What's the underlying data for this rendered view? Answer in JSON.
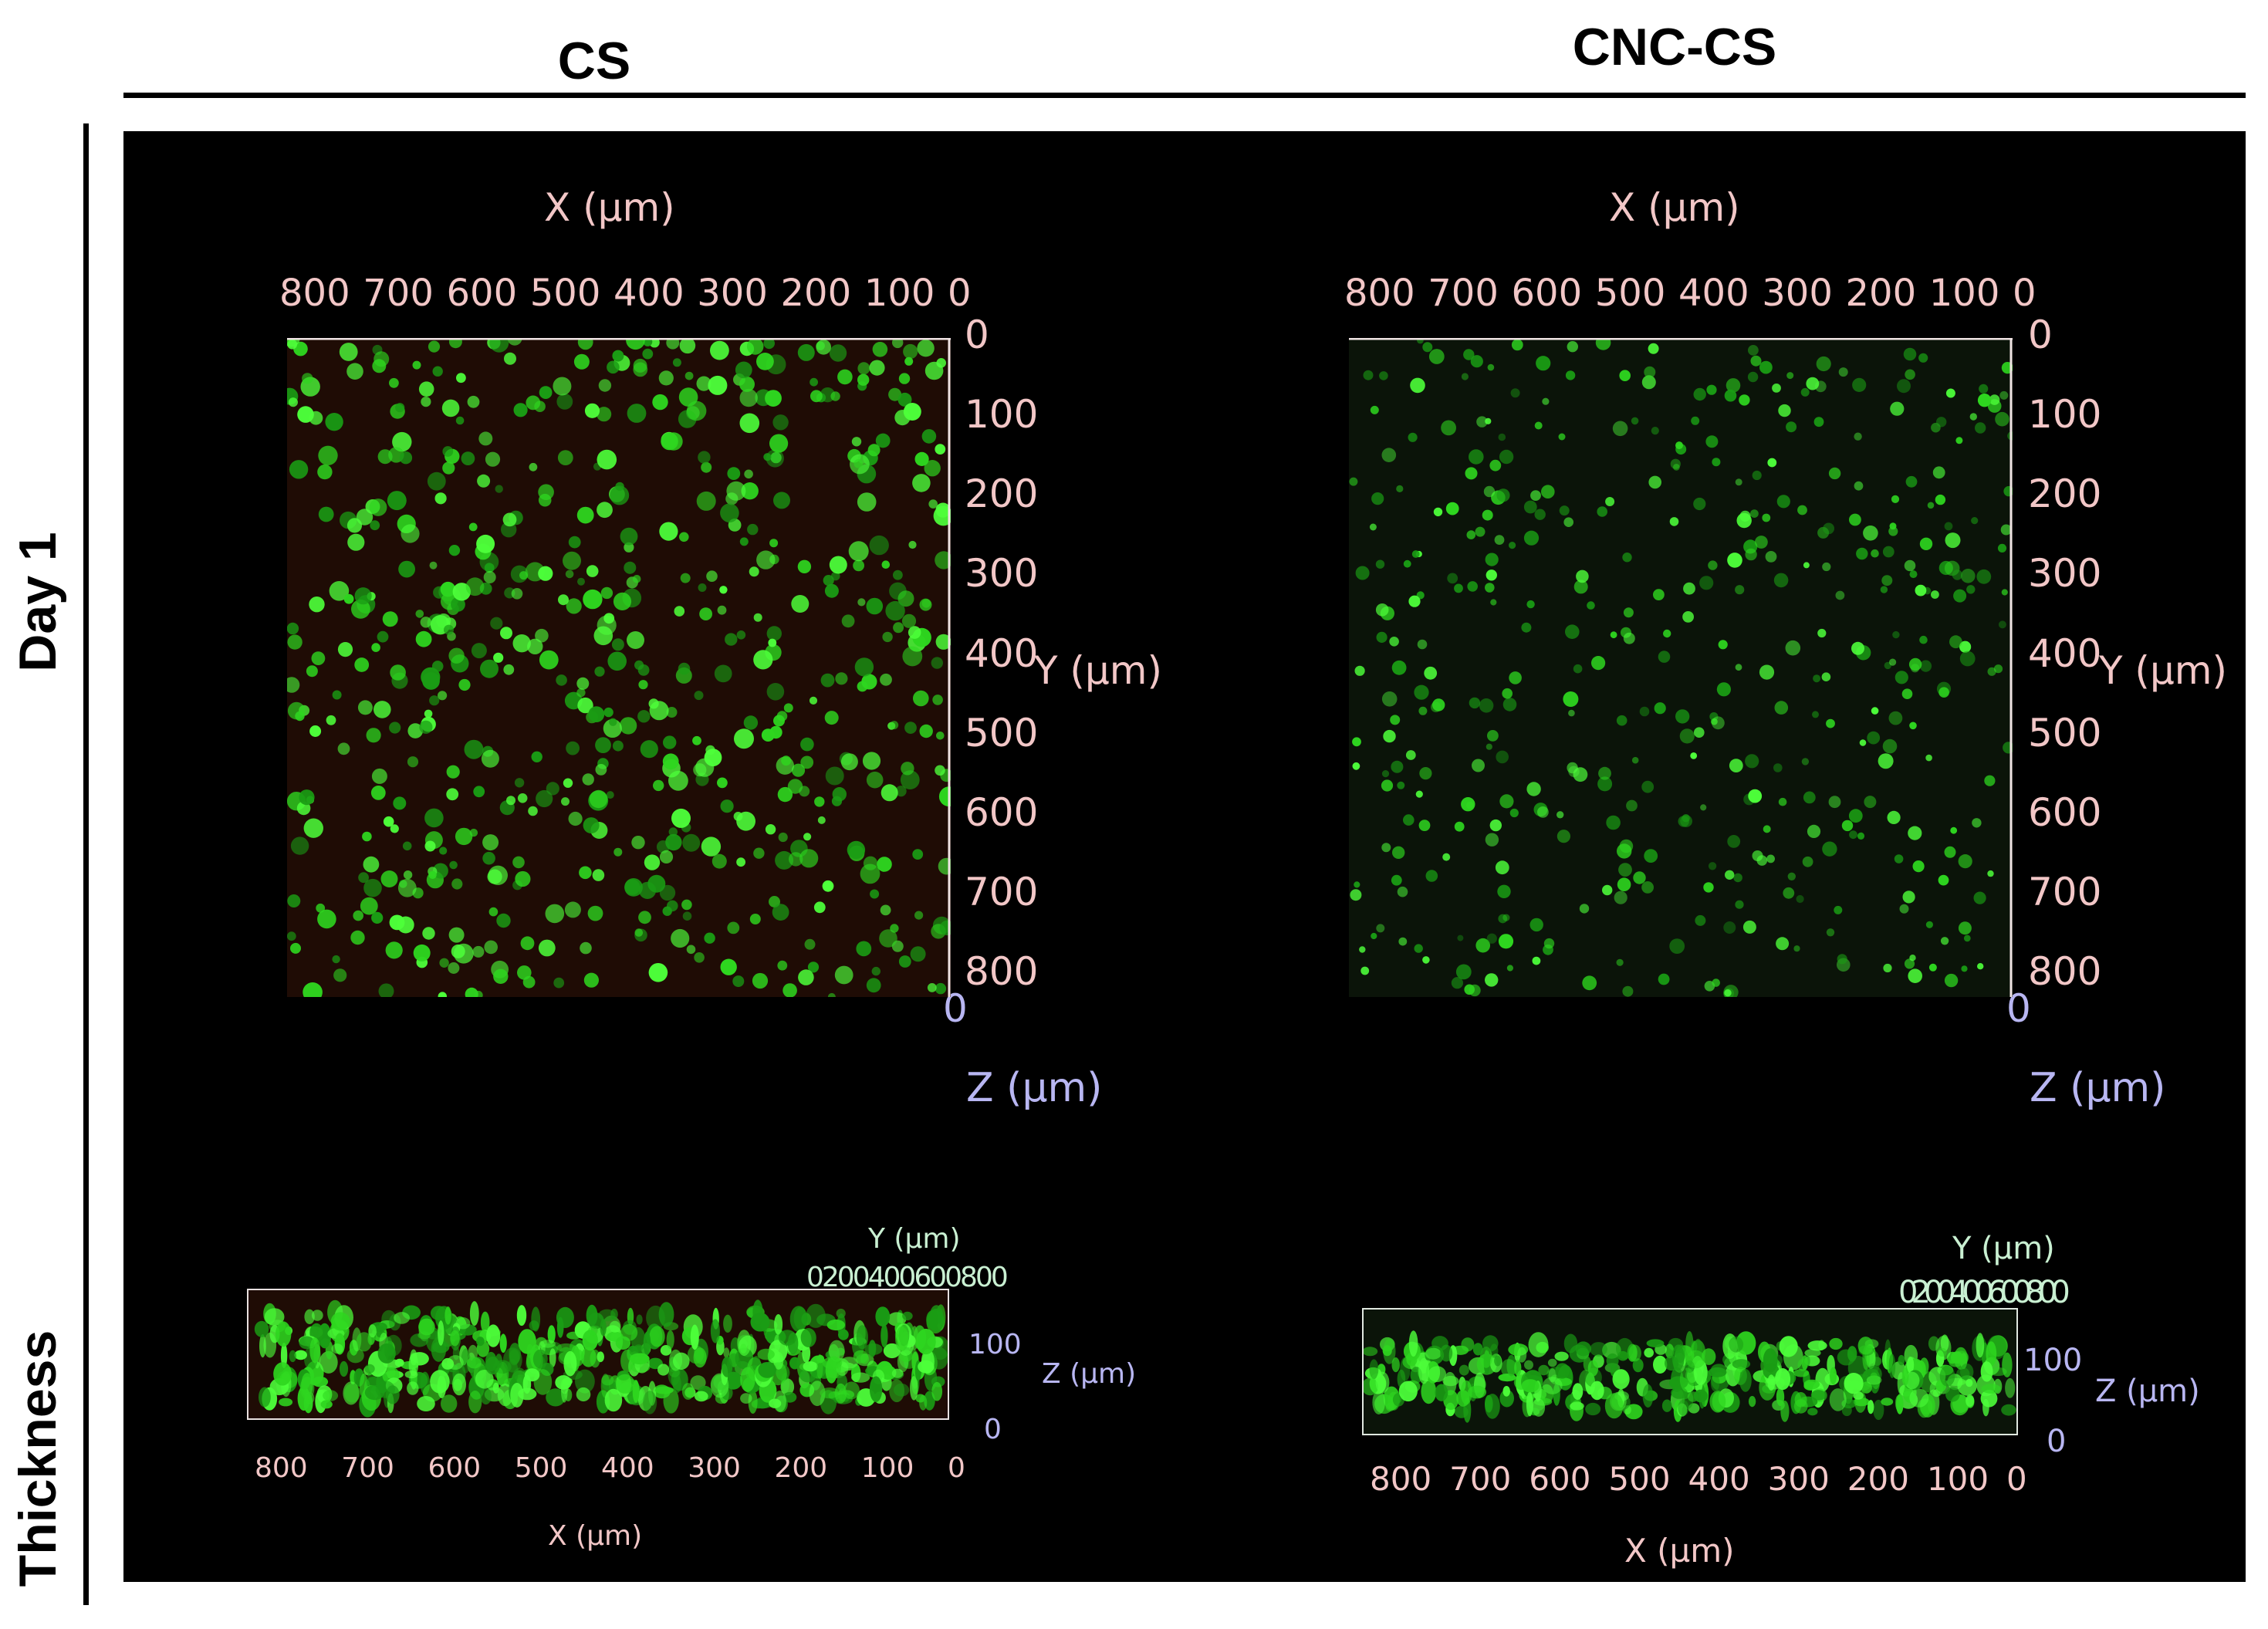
{
  "columns": {
    "cs": "CS",
    "cnc_cs": "CNC-CS"
  },
  "rows": {
    "day1": "Day 1",
    "thickness": "Thickness"
  },
  "panels": [
    {
      "id": "cs",
      "top_view": {
        "x_title": "X (µm)",
        "x_ticks": [
          "800",
          "700",
          "600",
          "500",
          "400",
          "300",
          "200",
          "100",
          "0"
        ],
        "y_ticks": [
          "0",
          "100",
          "200",
          "300",
          "400",
          "500",
          "600",
          "700",
          "800"
        ],
        "y_title": "Y (µm)",
        "z_zero": "0",
        "z_title": "Z (µm)"
      },
      "side_view": {
        "y_title": "Y (µm)",
        "y_ticks_text": "0200400600800",
        "z_ticks": [
          "100",
          "0"
        ],
        "z_title": "Z (µm)",
        "x_ticks": [
          "800",
          "700",
          "600",
          "500",
          "400",
          "300",
          "200",
          "100",
          "0"
        ],
        "x_title": "X (µm)"
      }
    },
    {
      "id": "cnc-cs",
      "top_view": {
        "x_title": "X (µm)",
        "x_ticks": [
          "800",
          "700",
          "600",
          "500",
          "400",
          "300",
          "200",
          "100",
          "0"
        ],
        "y_ticks": [
          "0",
          "100",
          "200",
          "300",
          "400",
          "500",
          "600",
          "700",
          "800"
        ],
        "y_title": "Y (µm)",
        "z_zero": "0",
        "z_title": "Z (µm)"
      },
      "side_view": {
        "y_title": "Y (µm)",
        "y_ticks_text": "0200400600800",
        "z_ticks": [
          "100",
          "0"
        ],
        "z_title": "Z (µm)",
        "x_ticks": [
          "800",
          "700",
          "600",
          "500",
          "400",
          "300",
          "200",
          "100",
          "0"
        ],
        "x_title": "X (µm)"
      }
    }
  ],
  "colors": {
    "cell_bright": "#4dff3a",
    "cell_mid": "#2ed61f",
    "cell_dim": "#1a9c14",
    "cs_background": "#1f0c05",
    "cnc_background": "#0b1409",
    "tick_text": "#f2c7c7",
    "z_text": "#b8b6f2",
    "side_y_text": "#c9f0d2"
  }
}
